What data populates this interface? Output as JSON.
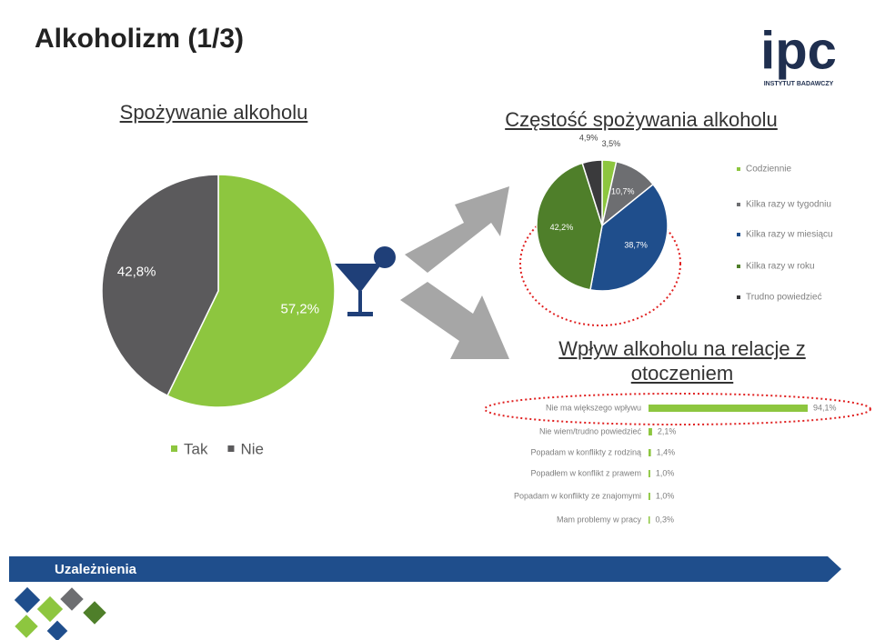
{
  "title": "Alkoholizm (1/3)",
  "logo": {
    "name": "ipc",
    "tagline": "INSTYTUT BADAWCZY"
  },
  "banner": "Uzależnienia",
  "chart_data": [
    {
      "type": "pie",
      "title": "Spożywanie alkoholu",
      "categories": [
        "Tak",
        "Nie"
      ],
      "values": [
        57.2,
        42.8
      ],
      "value_labels": [
        "57,2%",
        "42,8%"
      ],
      "colors": [
        "#8dc63f",
        "#5b5a5c"
      ],
      "legend": "bottom"
    },
    {
      "type": "pie",
      "title": "Częstość spożywania alkoholu",
      "categories": [
        "Codziennie",
        "Kilka razy w tygodniu",
        "Kilka razy w miesiącu",
        "Kilka razy w roku",
        "Trudno powiedzieć"
      ],
      "values": [
        3.5,
        10.7,
        38.7,
        42.2,
        4.9
      ],
      "value_labels": [
        "3,5%",
        "10,7%",
        "38,7%",
        "42,2%",
        "4,9%"
      ],
      "colors": [
        "#8dc63f",
        "#6d6e71",
        "#1f4e8c",
        "#4f7f2a",
        "#3a3a3c"
      ],
      "legend": "right"
    },
    {
      "type": "hbar",
      "title": "Wpływ alkoholu na relacje z otoczeniem",
      "categories": [
        "Nie ma większego wpływu",
        "Nie wiem/trudno powiedzieć",
        "Popadam w konflikty z rodziną",
        "Popadłem w konflikt z prawem",
        "Popadam w konflikty ze znajomymi",
        "Mam problemy w pracy"
      ],
      "values": [
        94.1,
        2.1,
        1.4,
        1.0,
        1.0,
        0.3
      ],
      "value_labels": [
        "94,1%",
        "2,1%",
        "1,4%",
        "1,0%",
        "1,0%",
        "0,3%"
      ],
      "color": "#8dc63f"
    }
  ]
}
